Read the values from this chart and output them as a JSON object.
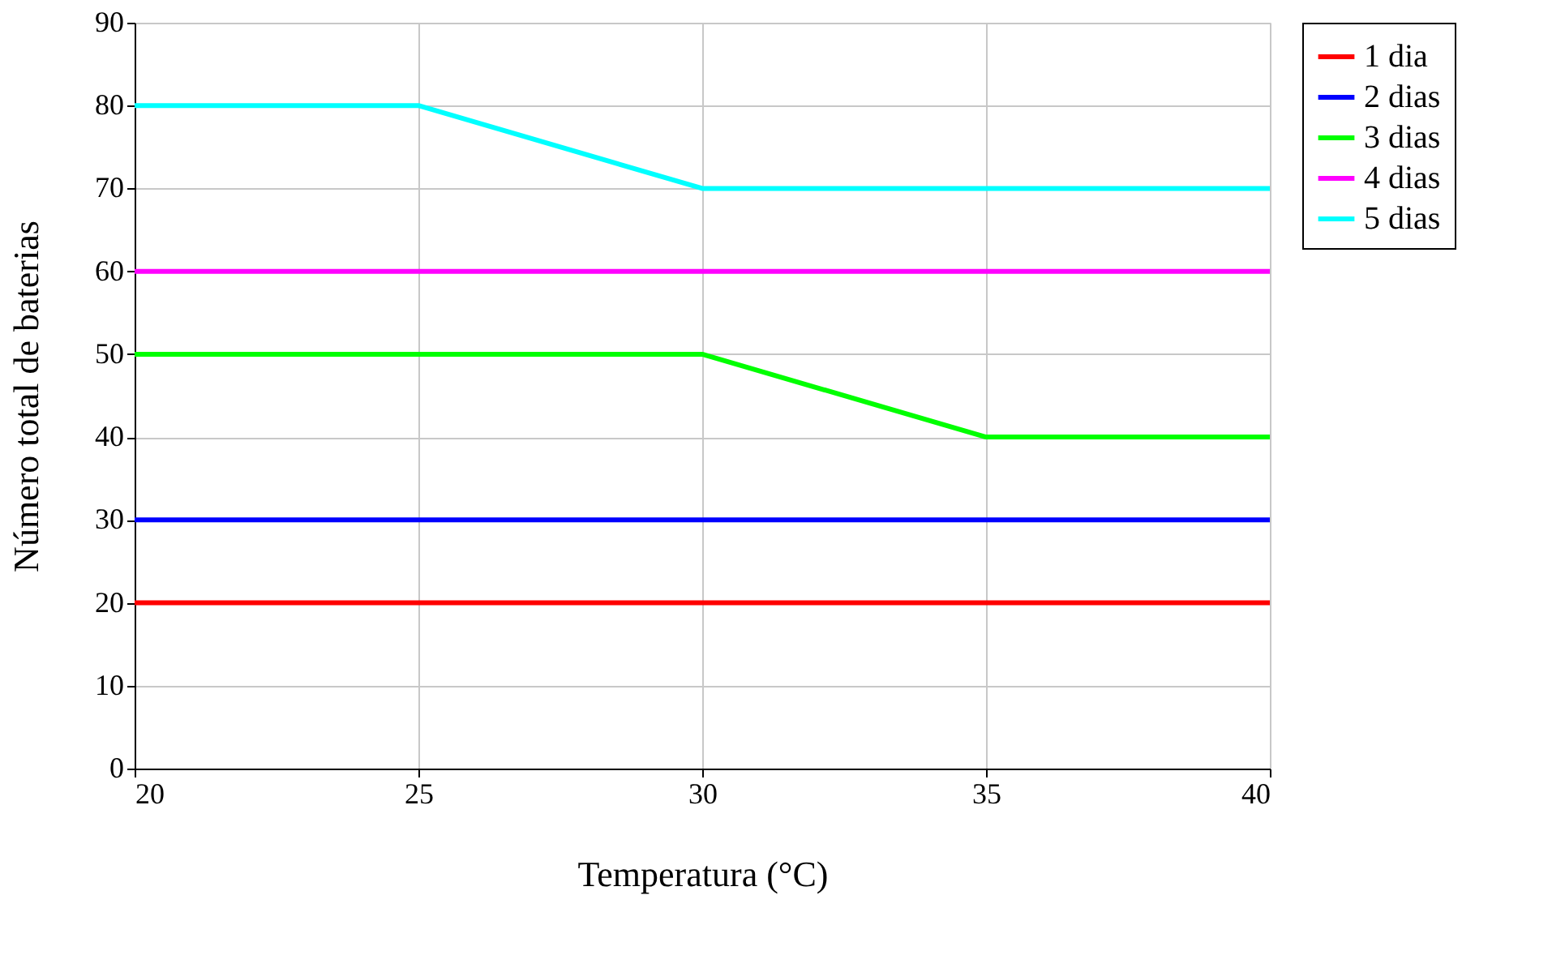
{
  "chart_data": {
    "type": "line",
    "xlabel": "Temperatura (°C)",
    "ylabel": "Número total de baterias",
    "x": [
      20,
      25,
      30,
      35,
      40
    ],
    "series": [
      {
        "name": "1 dia",
        "color": "#ff0000",
        "values": [
          20,
          20,
          20,
          20,
          20
        ]
      },
      {
        "name": "2 dias",
        "color": "#0000ff",
        "values": [
          30,
          30,
          30,
          30,
          30
        ]
      },
      {
        "name": "3 dias",
        "color": "#00ff00",
        "values": [
          50,
          50,
          50,
          40,
          40
        ]
      },
      {
        "name": "4 dias",
        "color": "#ff00ff",
        "values": [
          60,
          60,
          60,
          60,
          60
        ]
      },
      {
        "name": "5 dias",
        "color": "#00ffff",
        "values": [
          80,
          80,
          70,
          70,
          70
        ]
      }
    ],
    "xlim": [
      20,
      40
    ],
    "xticks": [
      20,
      25,
      30,
      35,
      40
    ],
    "ylim": [
      0,
      90
    ],
    "yticks": [
      0,
      10,
      20,
      30,
      40,
      50,
      60,
      70,
      80,
      90
    ],
    "grid": true,
    "legend": "right",
    "marker": "none",
    "line_style": "solid"
  }
}
